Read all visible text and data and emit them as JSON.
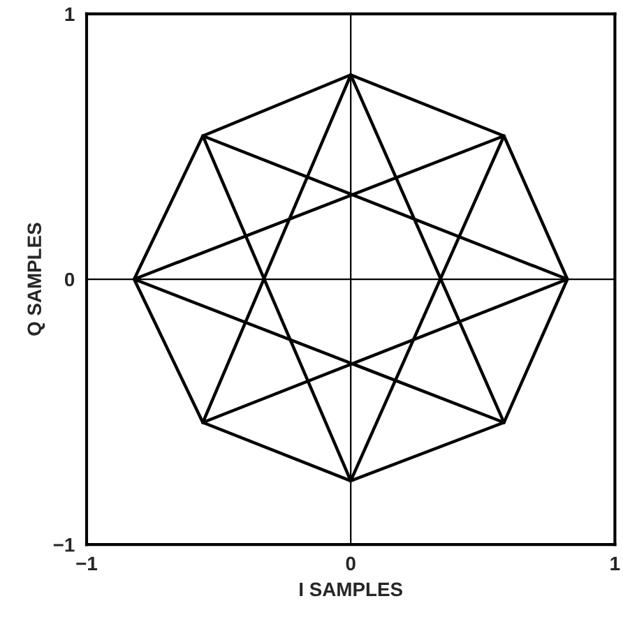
{
  "chart_data": {
    "type": "line",
    "xlabel": "I SAMPLES",
    "ylabel": "Q SAMPLES",
    "xlim": [
      -1,
      1
    ],
    "ylim": [
      -1,
      1
    ],
    "xticks": [
      {
        "value": -1,
        "label": "−1"
      },
      0,
      1
    ],
    "yticks": [
      {
        "value": -1,
        "label": "−1"
      },
      0,
      1
    ],
    "grid": true,
    "marker": "none",
    "line_style": "solid",
    "series": [
      {
        "color": "#000000",
        "x": [
          0.82,
          0.58
        ],
        "values": [
          0,
          0.54
        ]
      },
      {
        "color": "#000000",
        "x": [
          0.58,
          0
        ],
        "values": [
          0.54,
          0.77
        ]
      },
      {
        "color": "#000000",
        "x": [
          0,
          -0.56
        ],
        "values": [
          0.77,
          0.54
        ]
      },
      {
        "color": "#000000",
        "x": [
          -0.56,
          -0.82
        ],
        "values": [
          0.54,
          0
        ]
      },
      {
        "color": "#000000",
        "x": [
          -0.82,
          -0.56
        ],
        "values": [
          0,
          -0.54
        ]
      },
      {
        "color": "#000000",
        "x": [
          -0.56,
          0
        ],
        "values": [
          -0.54,
          -0.76
        ]
      },
      {
        "color": "#000000",
        "x": [
          0,
          0.58
        ],
        "values": [
          -0.76,
          -0.54
        ]
      },
      {
        "color": "#000000",
        "x": [
          0.58,
          0.82
        ],
        "values": [
          -0.54,
          0
        ]
      },
      {
        "color": "#000000",
        "x": [
          0.82,
          -0.56
        ],
        "values": [
          0,
          0.54
        ]
      },
      {
        "color": "#000000",
        "x": [
          -0.56,
          0
        ],
        "values": [
          0.54,
          -0.76
        ]
      },
      {
        "color": "#000000",
        "x": [
          0,
          0.58
        ],
        "values": [
          -0.76,
          0.54
        ]
      },
      {
        "color": "#000000",
        "x": [
          0.58,
          -0.82
        ],
        "values": [
          0.54,
          0
        ]
      },
      {
        "color": "#000000",
        "x": [
          -0.82,
          0.58
        ],
        "values": [
          0,
          -0.54
        ]
      },
      {
        "color": "#000000",
        "x": [
          0.58,
          0
        ],
        "values": [
          -0.54,
          0.77
        ]
      },
      {
        "color": "#000000",
        "x": [
          0,
          -0.56
        ],
        "values": [
          0.77,
          -0.54
        ]
      },
      {
        "color": "#000000",
        "x": [
          -0.56,
          0.82
        ],
        "values": [
          -0.54,
          0
        ]
      }
    ]
  }
}
